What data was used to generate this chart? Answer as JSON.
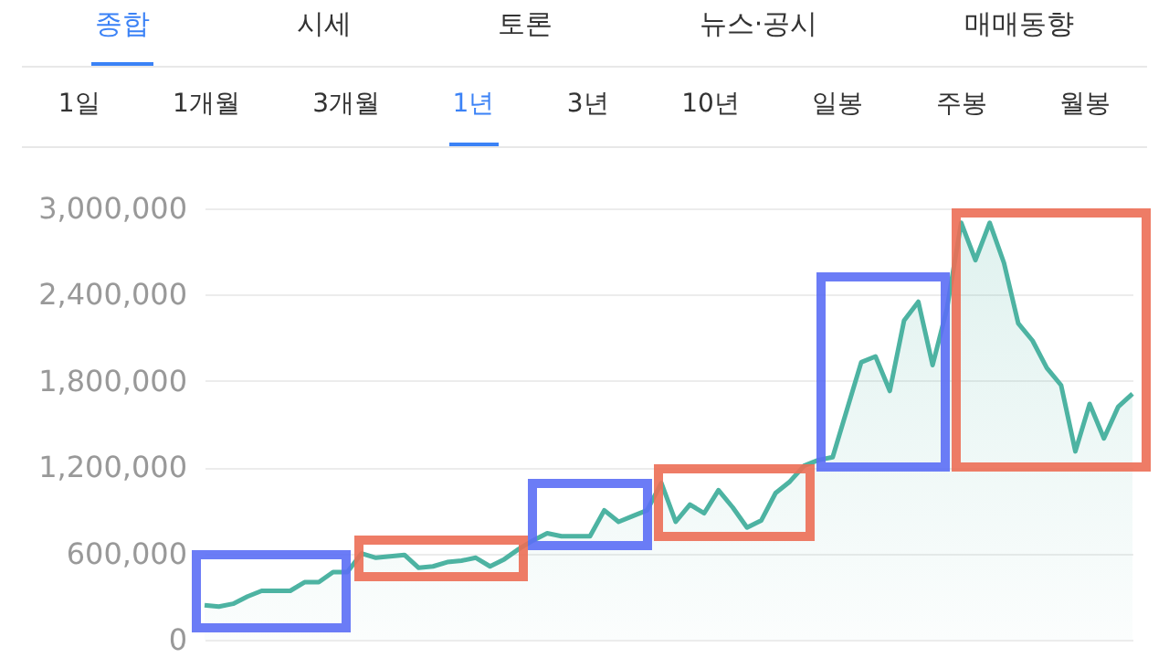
{
  "chart_data": {
    "type": "area",
    "annotations": [
      "종합",
      "시세",
      "토론",
      "뉴스·공시",
      "매매동향",
      "1일",
      "1개월",
      "3개월",
      "1년",
      "3년",
      "10년",
      "일봉",
      "주봉",
      "월봉"
    ],
    "categories": [
      null,
      null,
      null,
      null,
      null,
      null,
      null,
      null,
      null,
      null,
      null,
      null,
      null,
      null,
      null,
      null,
      null,
      null,
      null,
      null,
      null,
      null,
      null,
      null,
      null,
      null,
      null,
      null,
      null,
      null,
      null,
      null,
      null,
      null,
      null,
      null,
      null,
      null,
      null,
      null,
      null,
      null,
      null,
      null,
      null,
      null,
      null,
      null,
      null,
      null,
      null,
      null,
      null,
      null,
      null,
      null,
      null,
      null,
      null,
      null,
      null,
      null,
      null,
      null,
      null,
      null
    ],
    "series": [
      {
        "color": "#4db3a2",
        "values": [
          240000,
          230000,
          250000,
          300000,
          340000,
          340000,
          340000,
          400000,
          400000,
          470000,
          470000,
          600000,
          570000,
          580000,
          590000,
          500000,
          510000,
          540000,
          550000,
          570000,
          510000,
          560000,
          630000,
          690000,
          740000,
          720000,
          720000,
          720000,
          900000,
          820000,
          860000,
          900000,
          1090000,
          820000,
          940000,
          880000,
          1040000,
          920000,
          780000,
          830000,
          1020000,
          1100000,
          1210000,
          1250000,
          1270000,
          1600000,
          1930000,
          1970000,
          1730000,
          2220000,
          2350000,
          1910000,
          2300000,
          2900000,
          2640000,
          2900000,
          2620000,
          2200000,
          2080000,
          1890000,
          1770000,
          1310000,
          1640000,
          1400000,
          1620000,
          1710000
        ]
      }
    ],
    "ylim": [
      0,
      3000000
    ],
    "yticks": [
      0,
      {
        "value": 600000,
        "label": "600,000"
      },
      {
        "value": 1200000,
        "label": "1,200,000"
      },
      {
        "value": 1800000,
        "label": "1,800,000"
      },
      {
        "value": 2400000,
        "label": "2,400,000"
      },
      {
        "value": 3000000,
        "label": "3,000,000"
      }
    ],
    "tick_labels": "y",
    "grid": "y"
  }
}
